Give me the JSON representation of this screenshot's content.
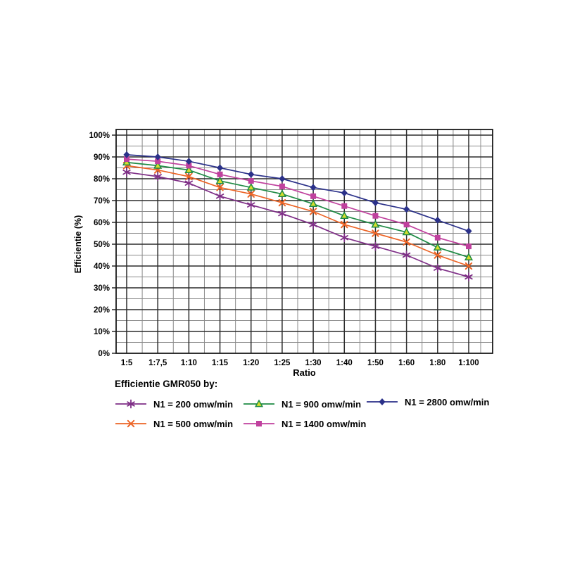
{
  "chart_data": {
    "type": "line",
    "title": "Efficientie GMR050 by:",
    "xlabel": "Ratio",
    "ylabel": "Efficientie (%)",
    "categories": [
      "1:5",
      "1:7,5",
      "1:10",
      "1:15",
      "1:20",
      "1:25",
      "1:30",
      "1:40",
      "1:50",
      "1:60",
      "1:80",
      "1:100"
    ],
    "ylim": [
      0,
      100
    ],
    "y_major_step": 10,
    "y_minor_step": 5,
    "y_tick_suffix": "%",
    "grid": "major+minor",
    "legend_position": "bottom-left",
    "series": [
      {
        "name": "N1 = 200 omw/min",
        "marker": "asterisk",
        "color": "#7F2F87",
        "values": [
          83,
          81,
          78,
          72,
          68,
          64,
          59,
          53,
          49,
          45,
          39,
          35
        ]
      },
      {
        "name": "N1 = 500 omw/min",
        "marker": "x",
        "color": "#EC6426",
        "values": [
          86,
          84,
          81,
          76,
          73,
          69,
          65,
          59,
          55,
          51,
          45,
          40
        ]
      },
      {
        "name": "N1 = 900 omw/min",
        "marker": "triangle",
        "color": "#1F8B45",
        "marker_fill": "#D5DE2D",
        "values": [
          87.5,
          86,
          84,
          79,
          76,
          73,
          68.5,
          63,
          59,
          55.5,
          48.5,
          44
        ]
      },
      {
        "name": "N1 = 1400 omw/min",
        "marker": "square",
        "color": "#C0419E",
        "values": [
          89,
          88,
          86,
          82,
          79,
          76.5,
          72,
          67.5,
          63,
          59,
          53,
          49
        ]
      },
      {
        "name": "N1 = 2800 omw/min",
        "marker": "diamond",
        "color": "#2B3189",
        "values": [
          91,
          90,
          88,
          85,
          82,
          80,
          76,
          73.5,
          69,
          66,
          61,
          56
        ]
      }
    ]
  },
  "colors": {
    "background": "#ffffff",
    "grid_major": "#2b2b2b",
    "grid_minor": "#8a8a8a",
    "axis": "#1a1a1a",
    "text": "#000000"
  }
}
